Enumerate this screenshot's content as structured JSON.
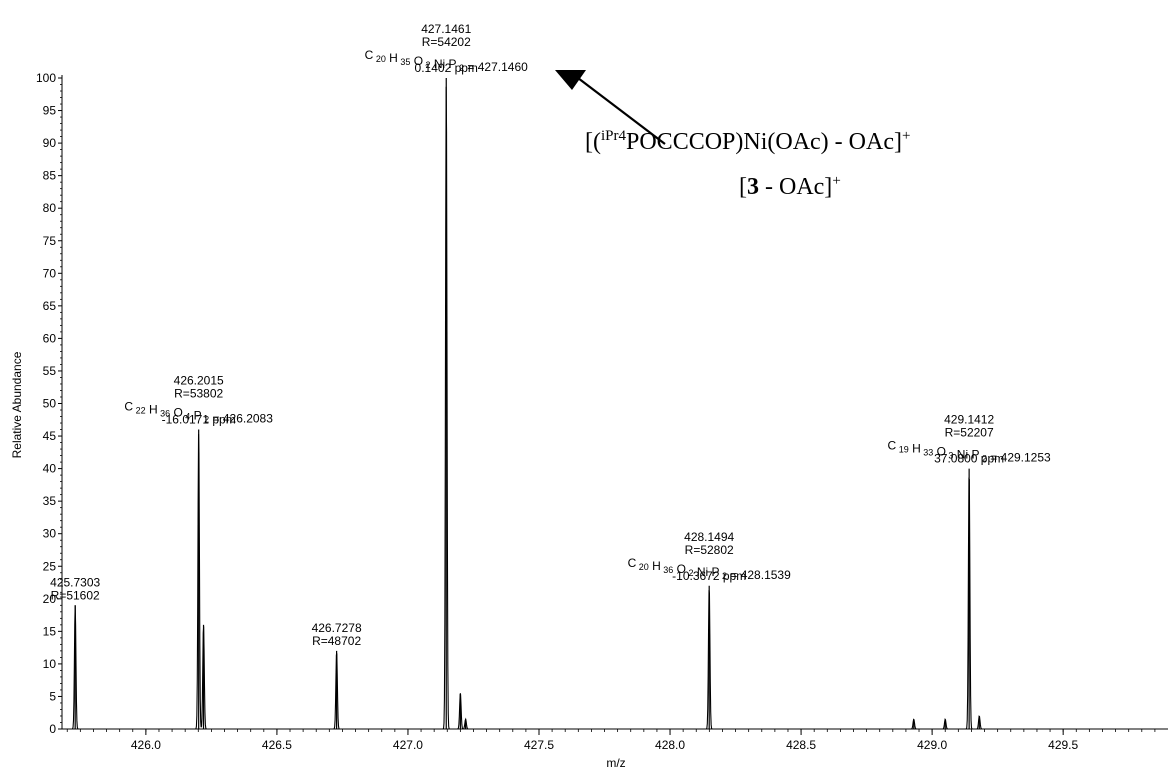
{
  "chart_data": {
    "type": "line",
    "title": "",
    "xlabel": "m/z",
    "ylabel": "Relative Abundance",
    "xlim": [
      425.68,
      429.9
    ],
    "ylim": [
      0,
      100
    ],
    "x_ticks": [
      "426.0",
      "426.5",
      "427.0",
      "427.5",
      "428.0",
      "428.5",
      "429.0",
      "429.5"
    ],
    "x_tick_values": [
      426.0,
      426.5,
      427.0,
      427.5,
      428.0,
      428.5,
      429.0,
      429.5
    ],
    "y_ticks": [
      "0",
      "5",
      "10",
      "15",
      "20",
      "25",
      "30",
      "35",
      "40",
      "45",
      "50",
      "55",
      "60",
      "65",
      "70",
      "75",
      "80",
      "85",
      "90",
      "95",
      "100"
    ],
    "y_tick_values": [
      0,
      5,
      10,
      15,
      20,
      25,
      30,
      35,
      40,
      45,
      50,
      55,
      60,
      65,
      70,
      75,
      80,
      85,
      90,
      95,
      100
    ],
    "series": [
      {
        "peaks": [
          {
            "x": 425.7303,
            "y": 19
          },
          {
            "x": 426.2015,
            "y": 46
          },
          {
            "x": 426.22,
            "y": 16
          },
          {
            "x": 426.7278,
            "y": 12
          },
          {
            "x": 427.1461,
            "y": 100
          },
          {
            "x": 427.2,
            "y": 5.5
          },
          {
            "x": 427.22,
            "y": 1.5
          },
          {
            "x": 428.1494,
            "y": 22
          },
          {
            "x": 428.93,
            "y": 1.5
          },
          {
            "x": 429.05,
            "y": 1.5
          },
          {
            "x": 429.1412,
            "y": 40
          },
          {
            "x": 429.18,
            "y": 2
          }
        ]
      }
    ],
    "annotations": [
      {
        "x": 425.7303,
        "y": 19,
        "lines": [
          "425.7303",
          "R=51602"
        ],
        "formula": null
      },
      {
        "x": 426.2015,
        "y": 46,
        "lines": [
          "426.2015",
          "R=53802"
        ],
        "formula": {
          "parts": [
            [
              "C",
              "22"
            ],
            [
              "H",
              "36"
            ],
            [
              "O",
              "4"
            ],
            [
              "P",
              "2"
            ]
          ],
          "value": " = 426.2083"
        },
        "ppm": "-16.0171 ppm"
      },
      {
        "x": 426.7278,
        "y": 12,
        "lines": [
          "426.7278",
          "R=48702"
        ],
        "formula": null
      },
      {
        "x": 427.1461,
        "y": 100,
        "lines": [
          "427.1461",
          "R=54202"
        ],
        "formula": {
          "parts": [
            [
              "C",
              "20"
            ],
            [
              "H",
              "35"
            ],
            [
              "O",
              "2"
            ],
            [
              "Ni",
              ""
            ],
            [
              "P",
              "2"
            ]
          ],
          "value": " = 427.1460"
        },
        "ppm": "0.1402 ppm"
      },
      {
        "x": 428.1494,
        "y": 22,
        "lines": [
          "428.1494",
          "R=52802"
        ],
        "formula": {
          "parts": [
            [
              "C",
              "20"
            ],
            [
              "H",
              "36"
            ],
            [
              "O",
              "2"
            ],
            [
              "Ni",
              ""
            ],
            [
              "P",
              "2"
            ]
          ],
          "value": " = 428.1539"
        },
        "ppm": "-10.3672 ppm"
      },
      {
        "x": 429.1412,
        "y": 40,
        "lines": [
          "429.1412",
          "R=52207"
        ],
        "formula": {
          "parts": [
            [
              "C",
              "19"
            ],
            [
              "H",
              "33"
            ],
            [
              "O",
              "3"
            ],
            [
              "Ni",
              ""
            ],
            [
              "P",
              "2"
            ]
          ],
          "value": " = 429.1253"
        },
        "ppm": "37.0800 ppm"
      }
    ]
  },
  "callout": {
    "line1": {
      "open": "[(",
      "sup": "iPr4",
      "main": "POCCCOP)Ni(OAc) - OAc]",
      "charge": "+"
    },
    "line2": {
      "open": "[",
      "bold": "3",
      "main": " - OAc]",
      "charge": "+"
    }
  }
}
